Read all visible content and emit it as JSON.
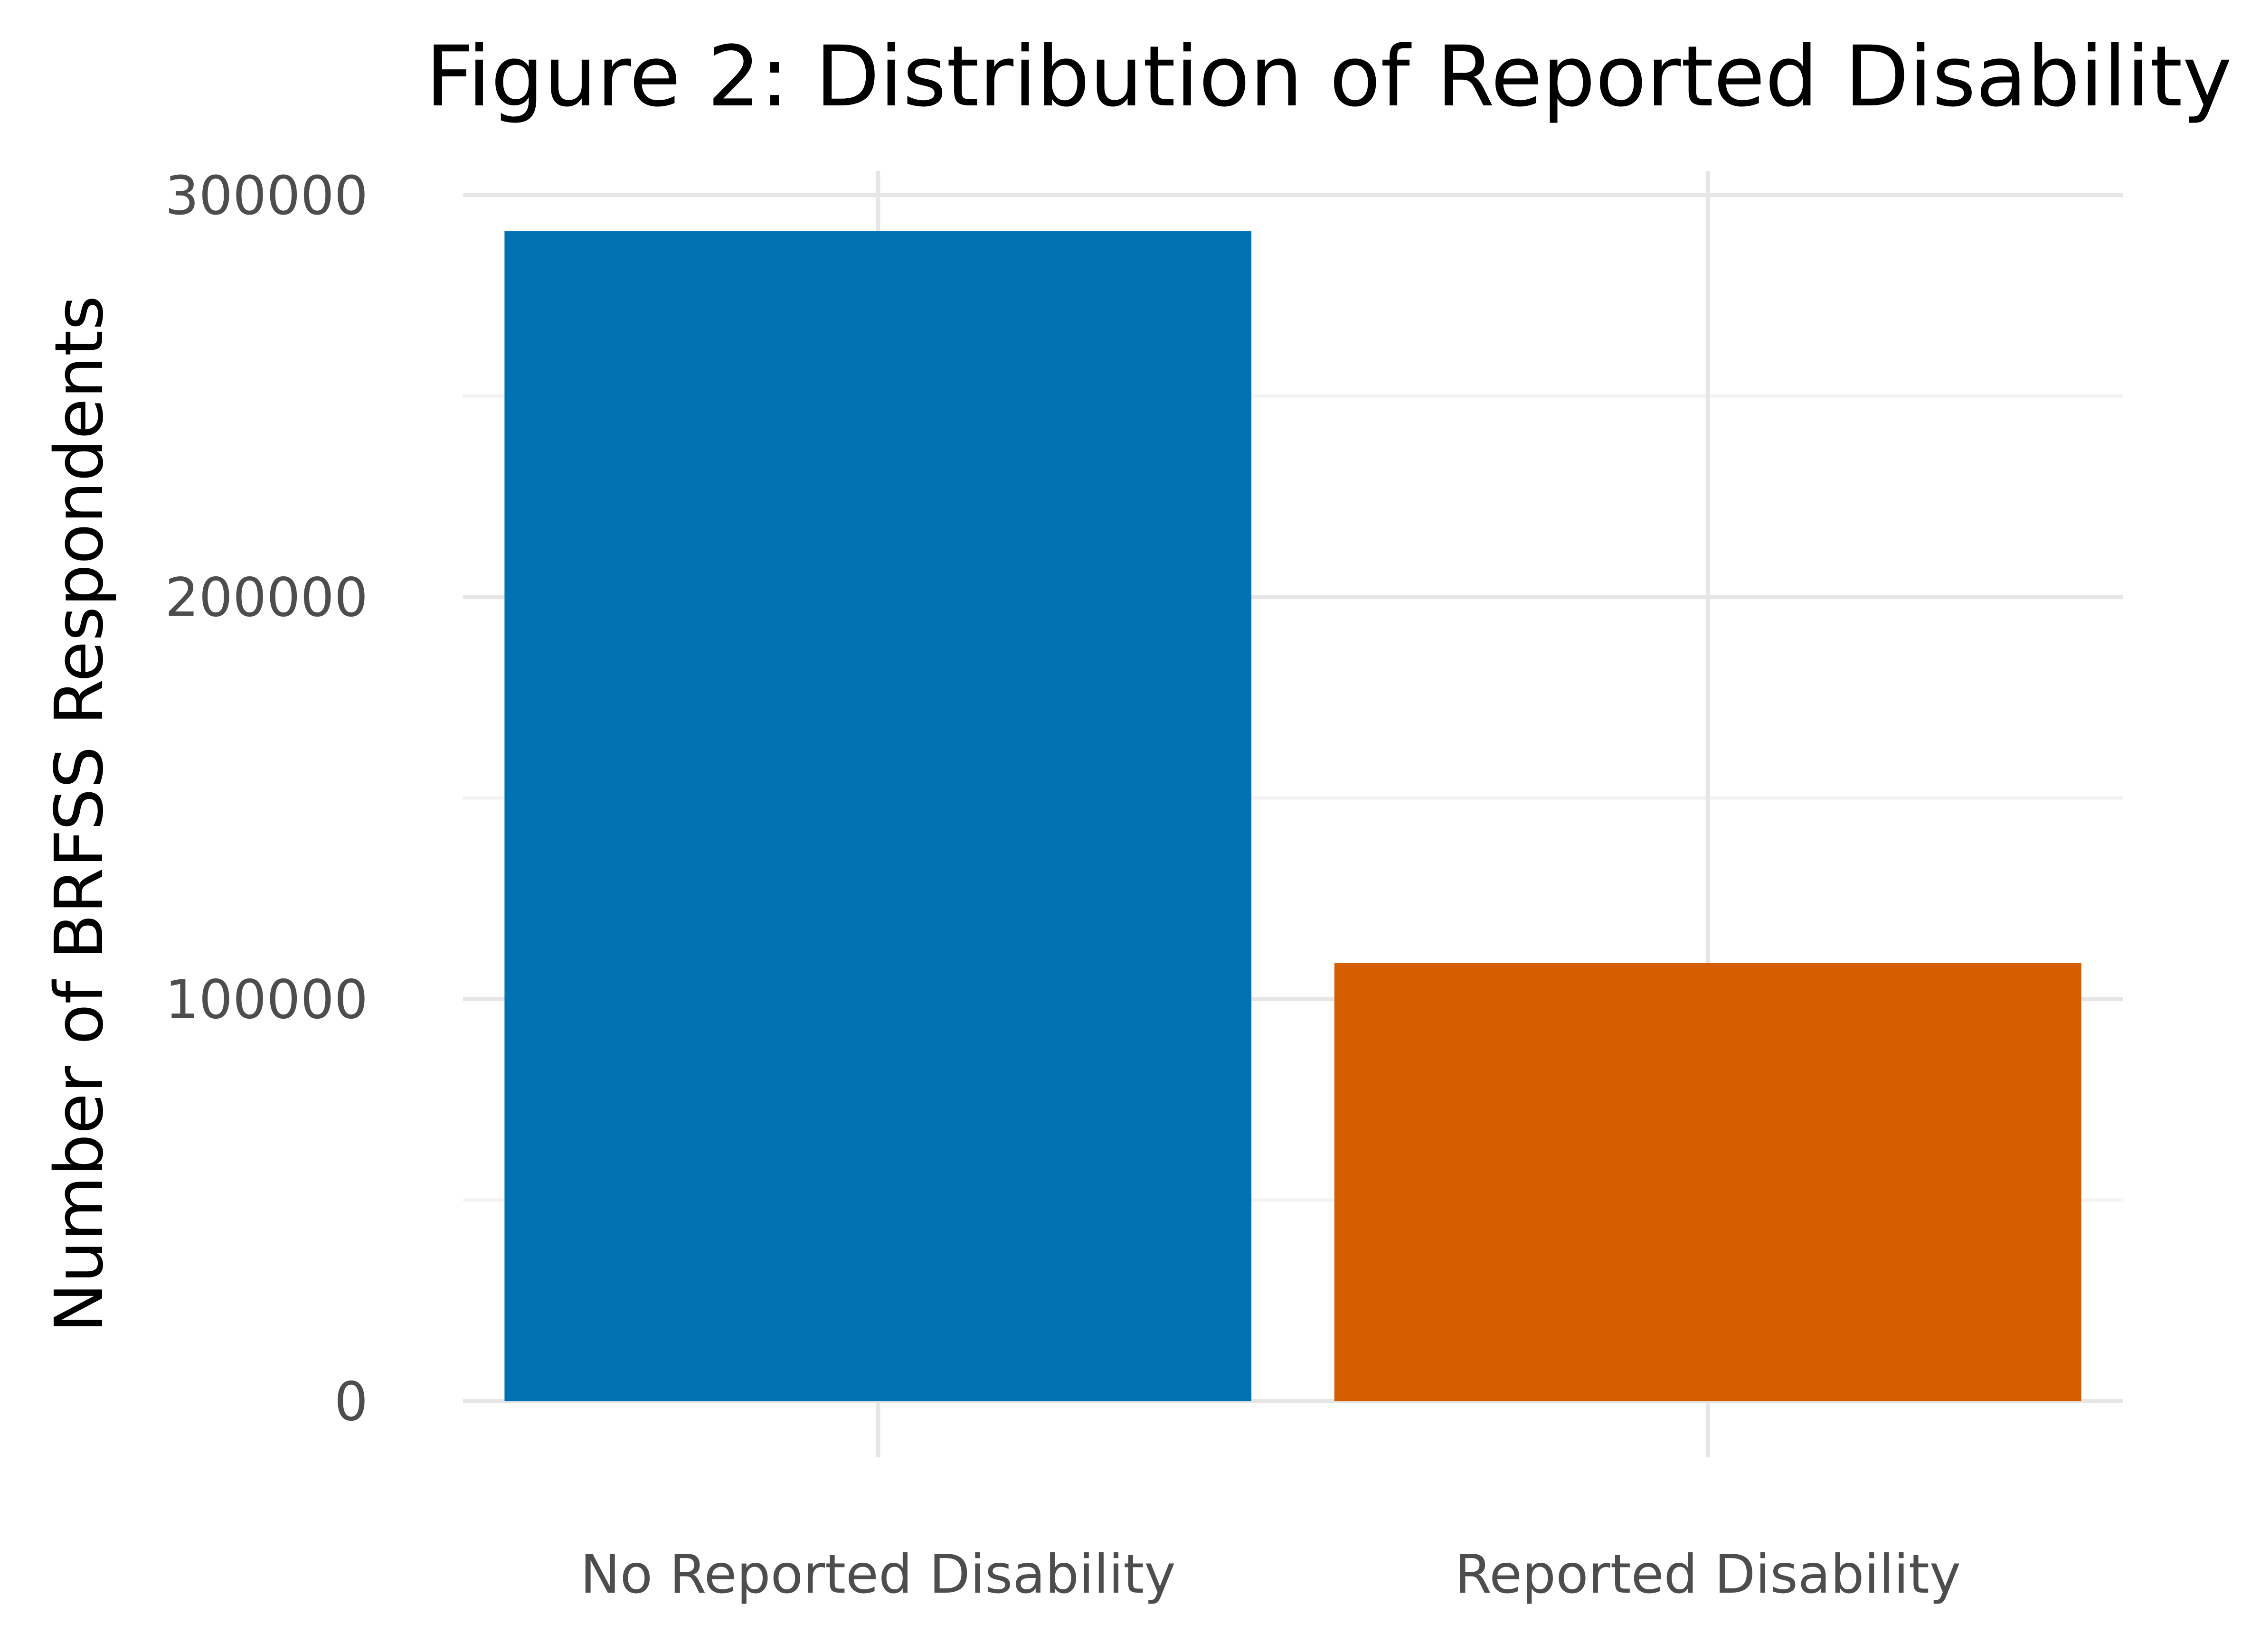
{
  "chart_data": {
    "type": "bar",
    "title": "Figure 2: Distribution of Reported Disability",
    "xlabel": "",
    "ylabel": "Number of BRFSS Respondents",
    "categories": [
      "No Reported Disability",
      "Reported Disability"
    ],
    "values": [
      291000,
      109000
    ],
    "bar_colors": [
      "#0072B2",
      "#D55E00"
    ],
    "ylim": [
      -14000,
      306000
    ],
    "y_ticks": [
      0,
      100000,
      200000,
      300000
    ],
    "y_tick_labels": [
      "0",
      "100000",
      "200000",
      "300000"
    ],
    "y_minor_ticks": [
      50000,
      150000,
      250000
    ],
    "grid": true,
    "legend": "none"
  }
}
